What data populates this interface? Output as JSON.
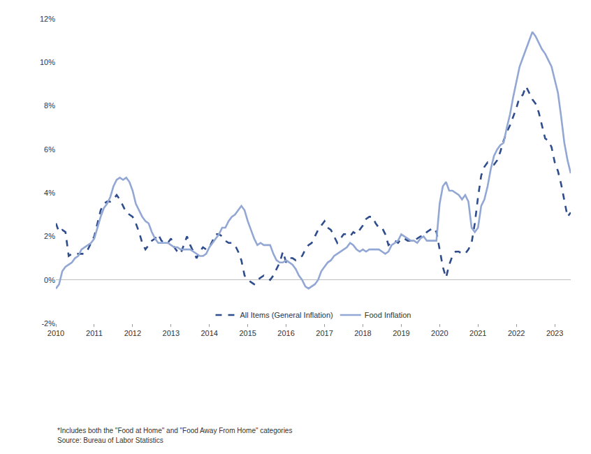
{
  "chart_data": {
    "type": "line",
    "categories": [
      "2010",
      null,
      null,
      null,
      null,
      null,
      null,
      null,
      null,
      null,
      null,
      null,
      "2011",
      null,
      null,
      null,
      null,
      null,
      null,
      null,
      null,
      null,
      null,
      null,
      "2012",
      null,
      null,
      null,
      null,
      null,
      null,
      null,
      null,
      null,
      null,
      null,
      "2013",
      null,
      null,
      null,
      null,
      null,
      null,
      null,
      null,
      null,
      null,
      null,
      "2014",
      null,
      null,
      null,
      null,
      null,
      null,
      null,
      null,
      null,
      null,
      null,
      "2015",
      null,
      null,
      null,
      null,
      null,
      null,
      null,
      null,
      null,
      null,
      null,
      "2016",
      null,
      null,
      null,
      null,
      null,
      null,
      null,
      null,
      null,
      null,
      null,
      "2017",
      null,
      null,
      null,
      null,
      null,
      null,
      null,
      null,
      null,
      null,
      null,
      "2018",
      null,
      null,
      null,
      null,
      null,
      null,
      null,
      null,
      null,
      null,
      null,
      "2019",
      null,
      null,
      null,
      null,
      null,
      null,
      null,
      null,
      null,
      null,
      null,
      "2020",
      null,
      null,
      null,
      null,
      null,
      null,
      null,
      null,
      null,
      null,
      null,
      "2021",
      null,
      null,
      null,
      null,
      null,
      null,
      null,
      null,
      null,
      null,
      null,
      "2022",
      null,
      null,
      null,
      null,
      null,
      null,
      null,
      null,
      null,
      null,
      null,
      "2023",
      null,
      null,
      null,
      null,
      null
    ],
    "series": [
      {
        "name": "All Items (General Inflation)",
        "color": "#2f4d8c",
        "line_style": "dash",
        "values": [
          2.6,
          2.2,
          2.3,
          2.2,
          1.1,
          1.2,
          1.2,
          1.2,
          1.2,
          1.2,
          1.4,
          1.7,
          2.0,
          2.6,
          3.2,
          3.5,
          3.6,
          3.6,
          3.7,
          3.9,
          3.7,
          3.4,
          3.1,
          3.0,
          2.9,
          2.6,
          2.2,
          1.7,
          1.4,
          1.6,
          1.8,
          1.9,
          2.1,
          1.8,
          1.7,
          1.7,
          1.9,
          1.5,
          1.3,
          1.2,
          1.6,
          2.0,
          1.6,
          1.3,
          1.0,
          1.3,
          1.5,
          1.4,
          1.5,
          1.8,
          2.1,
          2.1,
          2.0,
          1.8,
          1.7,
          1.7,
          1.6,
          1.3,
          0.9,
          0.2,
          0.0,
          -0.1,
          -0.2,
          0.0,
          0.1,
          0.2,
          0.1,
          0.0,
          0.2,
          0.5,
          0.8,
          1.3,
          0.8,
          1.0,
          1.0,
          0.9,
          1.0,
          1.1,
          1.4,
          1.6,
          1.7,
          2.0,
          2.3,
          2.5,
          2.7,
          2.4,
          2.3,
          2.0,
          1.7,
          1.9,
          2.1,
          2.1,
          2.0,
          2.2,
          2.1,
          2.3,
          2.5,
          2.8,
          2.9,
          2.9,
          2.6,
          2.4,
          2.4,
          2.1,
          1.6,
          1.7,
          1.8,
          1.7,
          1.9,
          1.9,
          1.8,
          1.8,
          1.8,
          1.9,
          2.0,
          2.0,
          2.2,
          2.3,
          2.4,
          2.2,
          1.4,
          0.6,
          0.1,
          0.7,
          1.1,
          1.3,
          1.3,
          1.2,
          1.2,
          1.4,
          1.7,
          2.6,
          3.8,
          4.8,
          5.2,
          5.4,
          5.3,
          5.3,
          5.5,
          5.9,
          6.4,
          6.8,
          7.1,
          7.5,
          7.9,
          8.4,
          8.5,
          8.9,
          8.6,
          8.3,
          8.1,
          7.7,
          7.1,
          6.5,
          6.4,
          6.1,
          5.4,
          5.0,
          4.4,
          3.6,
          2.9,
          3.1
        ]
      },
      {
        "name": "Food Inflation",
        "color": "#92a7d4",
        "line_style": "solid",
        "values": [
          -0.4,
          -0.2,
          0.4,
          0.6,
          0.7,
          0.8,
          1.0,
          1.1,
          1.4,
          1.5,
          1.6,
          1.7,
          1.9,
          2.4,
          2.9,
          3.3,
          3.5,
          3.8,
          4.3,
          4.6,
          4.7,
          4.6,
          4.7,
          4.5,
          4.1,
          3.5,
          3.2,
          2.9,
          2.7,
          2.6,
          2.2,
          1.9,
          1.7,
          1.7,
          1.7,
          1.7,
          1.6,
          1.5,
          1.5,
          1.4,
          1.4,
          1.4,
          1.4,
          1.3,
          1.2,
          1.1,
          1.1,
          1.2,
          1.5,
          1.7,
          1.9,
          2.1,
          2.4,
          2.4,
          2.7,
          2.9,
          3.0,
          3.2,
          3.4,
          3.2,
          2.7,
          2.3,
          1.9,
          1.6,
          1.7,
          1.6,
          1.6,
          1.6,
          1.2,
          0.9,
          0.8,
          0.8,
          0.9,
          0.8,
          0.7,
          0.5,
          0.2,
          0.0,
          -0.3,
          -0.4,
          -0.3,
          -0.2,
          0.0,
          0.4,
          0.6,
          0.8,
          0.9,
          1.1,
          1.2,
          1.3,
          1.4,
          1.5,
          1.7,
          1.6,
          1.4,
          1.3,
          1.4,
          1.3,
          1.4,
          1.4,
          1.4,
          1.4,
          1.3,
          1.2,
          1.3,
          1.6,
          1.7,
          1.8,
          2.1,
          2.0,
          1.9,
          1.8,
          1.8,
          1.7,
          1.9,
          2.0,
          1.8,
          1.8,
          1.8,
          1.8,
          3.5,
          4.3,
          4.5,
          4.1,
          4.1,
          4.0,
          3.9,
          3.7,
          3.9,
          3.6,
          2.4,
          2.2,
          2.4,
          3.4,
          3.7,
          4.3,
          5.1,
          5.7,
          6.0,
          6.2,
          6.3,
          7.0,
          7.6,
          8.4,
          9.1,
          9.8,
          10.2,
          10.6,
          11.0,
          11.4,
          11.2,
          10.9,
          10.6,
          10.4,
          10.1,
          9.8,
          9.2,
          8.6,
          7.5,
          6.3,
          5.5,
          4.9
        ]
      }
    ],
    "ylim": [
      -2,
      12
    ],
    "yticks": [
      {
        "value": -2,
        "label": "-2%"
      },
      {
        "value": 0,
        "label": "0%"
      },
      {
        "value": 2,
        "label": "2%"
      },
      {
        "value": 4,
        "label": "4%"
      },
      {
        "value": 6,
        "label": "6%"
      },
      {
        "value": 8,
        "label": "8%"
      },
      {
        "value": 10,
        "label": "10%"
      },
      {
        "value": 12,
        "label": "12%"
      }
    ],
    "grid": false,
    "legend": "bottom",
    "notes": [
      "*Includes both the \"Food at Home\" and \"Food Away From Home\" categories",
      "Source: Bureau of Labor Statistics"
    ]
  }
}
